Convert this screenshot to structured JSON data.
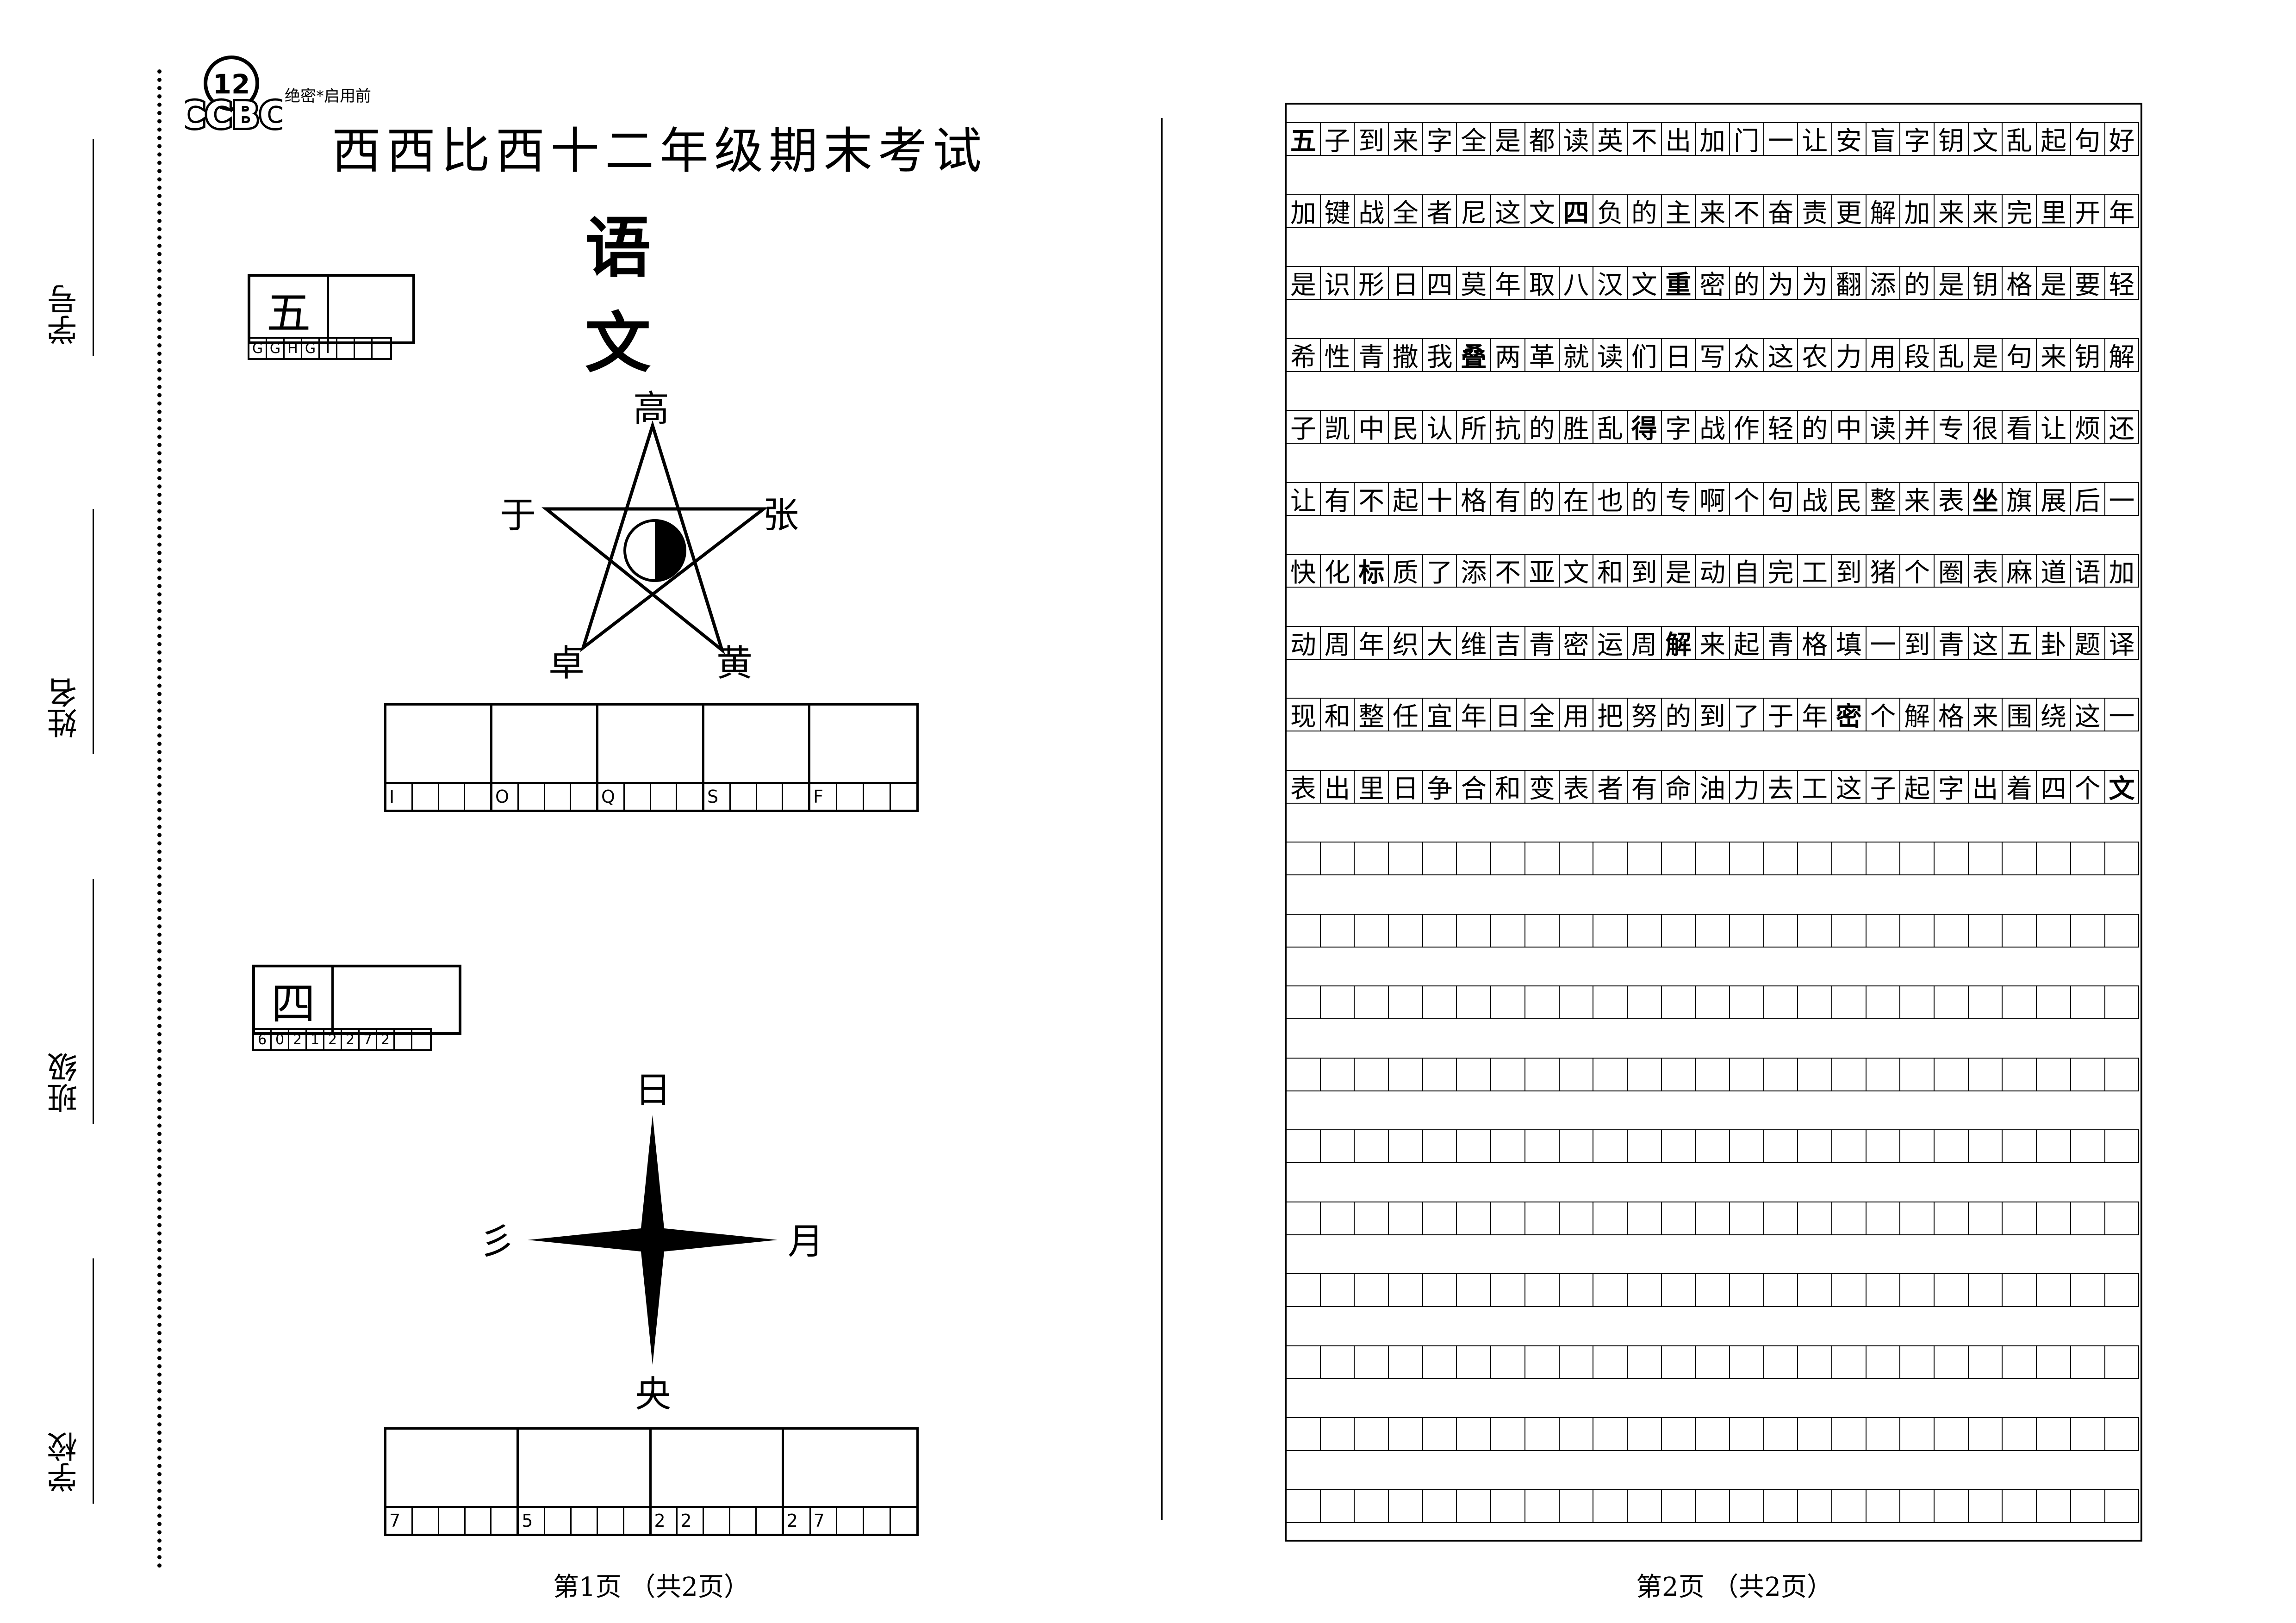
{
  "header": {
    "logo_number": "12",
    "logo_text": "CCBC",
    "confidential": "绝密*启用前",
    "title": "西西比西十二年级期末考试",
    "subject": "语  文"
  },
  "side_labels": [
    "学号",
    "姓名",
    "班级",
    "学校"
  ],
  "question5": {
    "number": "五",
    "codes": [
      "G",
      "G",
      "H",
      "G",
      "T",
      "",
      "",
      ""
    ],
    "diagram": {
      "type": "pentagram",
      "center_icon": "half-filled-circle-icon",
      "labels": {
        "top": "高",
        "left": "于",
        "right": "张",
        "bottom_left": "卓",
        "bottom_right": "黄"
      }
    },
    "answer_codes": [
      [
        "I",
        "",
        "",
        ""
      ],
      [
        "O",
        "",
        "",
        ""
      ],
      [
        "Q",
        "",
        "",
        ""
      ],
      [
        "S",
        "",
        "",
        ""
      ],
      [
        "F",
        "",
        "",
        ""
      ]
    ]
  },
  "question4": {
    "number": "四",
    "codes": [
      "6",
      "0",
      "2",
      "1",
      "2",
      "2",
      "7",
      "2",
      "",
      ""
    ],
    "diagram": {
      "type": "compass-star",
      "labels": {
        "top": "日",
        "left": "彡",
        "right": "月",
        "bottom": "央"
      }
    },
    "answer_codes": [
      [
        "7",
        "",
        "",
        "",
        ""
      ],
      [
        "5",
        "",
        "",
        "",
        ""
      ],
      [
        "2",
        "2",
        "",
        "",
        ""
      ],
      [
        "2",
        "7",
        "",
        "",
        ""
      ]
    ]
  },
  "page_numbers": {
    "left": "第1页 （共2页）",
    "right": "第2页 （共2页）"
  },
  "grid": {
    "columns": 25,
    "total_rows": 20,
    "text_rows": [
      "五子到来字全是都读英不出加门一让安盲字钥文乱起句好",
      "加键战全者尼这文四负的主来不奋责更解加来来完里开年",
      "是识形日四莫年取八汉文重密的为为翻添的是钥格是要轻",
      "希性青撒我叠两革就读们日写众这农力用段乱是句来钥解",
      "子凯中民认所抗的胜乱得字战作轻的中读并专很看让烦还",
      "让有不起十格有的在也的专啊个句战民整来表坐旗展后一",
      "快化标质了添不亚文和到是动自完工到猪个圈表麻道语加",
      "动周年织大维吉青密运周解来起青格填一到青这五卦题译",
      "现和整任宜年日全用把努的到了于年密个解格来围绕这一",
      "表出里日争合和变表者有命油力去工这子起字出着四个文"
    ],
    "bold_positions": [
      [
        0,
        0
      ],
      [
        1,
        8
      ],
      [
        2,
        11
      ],
      [
        3,
        5
      ],
      [
        4,
        10
      ],
      [
        5,
        20
      ],
      [
        6,
        2
      ],
      [
        7,
        11
      ],
      [
        8,
        16
      ],
      [
        9,
        24
      ]
    ]
  }
}
